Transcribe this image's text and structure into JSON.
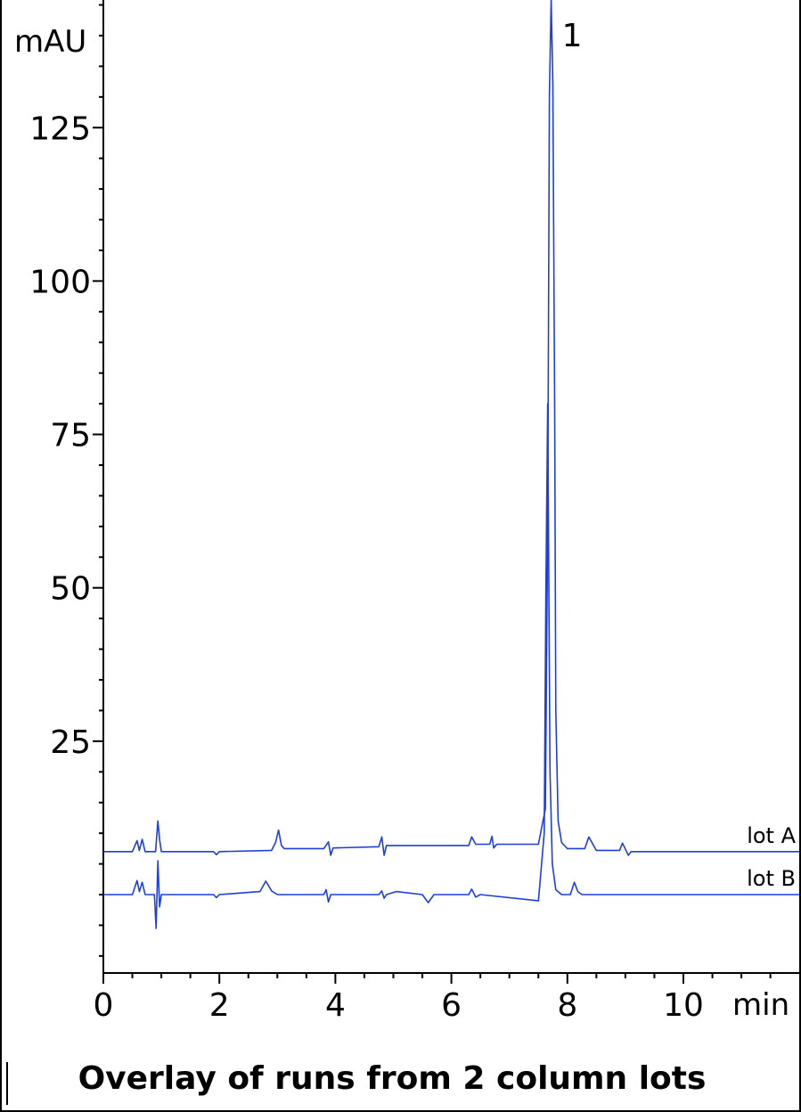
{
  "chart_data": {
    "type": "line",
    "title": "Overlay of runs from 2 column lots",
    "xlabel": "min",
    "ylabel": "mAU",
    "xlim": [
      0,
      12
    ],
    "ylim": [
      -13,
      146
    ],
    "x_ticks": [
      0,
      2,
      4,
      6,
      8,
      10
    ],
    "y_ticks": [
      25,
      50,
      75,
      100,
      125
    ],
    "grid": false,
    "legend": "inline-right",
    "series_color": "#1f3fdc",
    "annotations": [
      {
        "text": "1",
        "x": 7.72,
        "y": 140
      }
    ],
    "series": [
      {
        "name": "lot A",
        "points": [
          [
            0,
            7
          ],
          [
            0.5,
            7
          ],
          [
            0.58,
            8.8
          ],
          [
            0.62,
            7.2
          ],
          [
            0.67,
            9
          ],
          [
            0.72,
            7
          ],
          [
            0.9,
            7
          ],
          [
            0.94,
            12
          ],
          [
            0.97,
            9
          ],
          [
            1.0,
            7
          ],
          [
            1.9,
            7
          ],
          [
            1.95,
            6.5
          ],
          [
            2.0,
            7
          ],
          [
            2.9,
            7.2
          ],
          [
            2.97,
            8.5
          ],
          [
            3.02,
            10.5
          ],
          [
            3.07,
            8
          ],
          [
            3.12,
            7.5
          ],
          [
            3.8,
            7.5
          ],
          [
            3.88,
            8.6
          ],
          [
            3.92,
            6.4
          ],
          [
            3.96,
            7.6
          ],
          [
            4.75,
            7.8
          ],
          [
            4.8,
            9.4
          ],
          [
            4.84,
            6.4
          ],
          [
            4.88,
            8
          ],
          [
            6.3,
            8
          ],
          [
            6.35,
            9.4
          ],
          [
            6.42,
            8.2
          ],
          [
            6.66,
            8.2
          ],
          [
            6.7,
            9.5
          ],
          [
            6.73,
            7.6
          ],
          [
            6.78,
            8.2
          ],
          [
            7.5,
            8.2
          ],
          [
            7.62,
            14
          ],
          [
            7.66,
            60
          ],
          [
            7.69,
            130
          ],
          [
            7.72,
            146
          ],
          [
            7.75,
            132
          ],
          [
            7.78,
            80
          ],
          [
            7.8,
            30
          ],
          [
            7.84,
            12
          ],
          [
            7.9,
            8.5
          ],
          [
            8.0,
            7.5
          ],
          [
            8.3,
            7.5
          ],
          [
            8.37,
            9.4
          ],
          [
            8.44,
            8.2
          ],
          [
            8.5,
            7.2
          ],
          [
            8.9,
            7.2
          ],
          [
            8.95,
            8.4
          ],
          [
            9.05,
            6.4
          ],
          [
            9.1,
            7
          ],
          [
            12,
            7
          ]
        ]
      },
      {
        "name": "lot B",
        "points": [
          [
            0,
            0
          ],
          [
            0.5,
            0
          ],
          [
            0.58,
            2.3
          ],
          [
            0.62,
            0.5
          ],
          [
            0.67,
            2
          ],
          [
            0.72,
            0
          ],
          [
            0.88,
            0
          ],
          [
            0.91,
            -5.5
          ],
          [
            0.94,
            5.5
          ],
          [
            0.97,
            -2
          ],
          [
            1.0,
            0
          ],
          [
            1.9,
            0
          ],
          [
            1.95,
            -0.5
          ],
          [
            2.0,
            0
          ],
          [
            2.7,
            0.5
          ],
          [
            2.8,
            2.2
          ],
          [
            2.9,
            0.6
          ],
          [
            3.0,
            0
          ],
          [
            3.8,
            0
          ],
          [
            3.84,
            0.8
          ],
          [
            3.88,
            -1.2
          ],
          [
            3.92,
            0
          ],
          [
            4.75,
            0
          ],
          [
            4.8,
            0.6
          ],
          [
            4.84,
            -0.6
          ],
          [
            4.88,
            0
          ],
          [
            5.05,
            0.5
          ],
          [
            5.5,
            0
          ],
          [
            5.6,
            -1.3
          ],
          [
            5.7,
            0
          ],
          [
            6.3,
            0
          ],
          [
            6.35,
            0.9
          ],
          [
            6.42,
            -0.4
          ],
          [
            6.5,
            0
          ],
          [
            7.5,
            -1
          ],
          [
            7.6,
            10
          ],
          [
            7.63,
            50
          ],
          [
            7.66,
            80
          ],
          [
            7.7,
            20
          ],
          [
            7.74,
            5
          ],
          [
            7.8,
            0.8
          ],
          [
            7.9,
            0
          ],
          [
            8.05,
            0
          ],
          [
            8.12,
            2
          ],
          [
            8.18,
            0.5
          ],
          [
            8.25,
            0
          ],
          [
            12,
            0
          ]
        ]
      }
    ]
  }
}
